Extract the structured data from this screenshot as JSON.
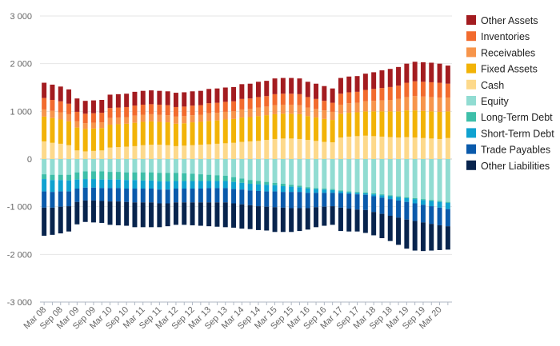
{
  "chart_data": {
    "type": "bar",
    "stacked": true,
    "grid": true,
    "legend_position": "right",
    "ylim": [
      -3000,
      3000
    ],
    "y_ticks": [
      3000,
      2000,
      1000,
      0,
      -1000,
      -2000,
      -3000
    ],
    "y_tick_labels": [
      "3 000",
      "2 000",
      "1 000",
      "0",
      "-1 000",
      "-2 000",
      "-3 000"
    ],
    "x_tick_labels": [
      "Mar 08",
      "Sep 08",
      "Mar 09",
      "Sep 09",
      "Mar 10",
      "Sep 10",
      "Mar 11",
      "Sep 11",
      "Mar 12",
      "Sep 12",
      "Mar 13",
      "Sep 13",
      "Mar 14",
      "Sep 14",
      "Mar 15",
      "Sep 15",
      "Mar 16",
      "Sep 16",
      "Mar 17",
      "Sep 17",
      "Mar 18",
      "Sep 18",
      "Mar 19",
      "Sep 19",
      "Mar 20"
    ],
    "categories": [
      "Q1 08",
      "Q2 08",
      "Q3 08",
      "Q4 08",
      "Q1 09",
      "Q2 09",
      "Q3 09",
      "Q4 09",
      "Q1 10",
      "Q2 10",
      "Q3 10",
      "Q4 10",
      "Q1 11",
      "Q2 11",
      "Q3 11",
      "Q4 11",
      "Q1 12",
      "Q2 12",
      "Q3 12",
      "Q4 12",
      "Q1 13",
      "Q2 13",
      "Q3 13",
      "Q4 13",
      "Q1 14",
      "Q2 14",
      "Q3 14",
      "Q4 14",
      "Q1 15",
      "Q2 15",
      "Q3 15",
      "Q4 15",
      "Q1 16",
      "Q2 16",
      "Q3 16",
      "Q4 16",
      "Q1 17",
      "Q2 17",
      "Q3 17",
      "Q4 17",
      "Q1 18",
      "Q2 18",
      "Q3 18",
      "Q4 18",
      "Q1 19",
      "Q2 19",
      "Q3 19",
      "Q4 19",
      "Q1 20",
      "Q2 20"
    ],
    "series": [
      {
        "name": "Cash",
        "color": "#fdd98b",
        "values": [
          370,
          340,
          320,
          290,
          180,
          160,
          170,
          180,
          240,
          250,
          260,
          270,
          290,
          300,
          300,
          290,
          270,
          280,
          290,
          300,
          310,
          320,
          330,
          340,
          360,
          370,
          380,
          400,
          420,
          430,
          430,
          420,
          400,
          380,
          360,
          350,
          450,
          470,
          480,
          490,
          480,
          470,
          460,
          450,
          460,
          450,
          440,
          430,
          420,
          440
        ]
      },
      {
        "name": "Fixed Assets",
        "color": "#f2b307",
        "values": [
          520,
          520,
          510,
          500,
          480,
          470,
          470,
          470,
          480,
          480,
          480,
          490,
          490,
          490,
          480,
          480,
          470,
          470,
          480,
          480,
          490,
          490,
          500,
          500,
          510,
          510,
          520,
          520,
          520,
          520,
          520,
          520,
          500,
          490,
          480,
          470,
          500,
          500,
          500,
          510,
          520,
          530,
          540,
          550,
          560,
          570,
          570,
          570,
          570,
          560
        ]
      },
      {
        "name": "Receivables",
        "color": "#f7954b",
        "values": [
          150,
          150,
          150,
          150,
          130,
          120,
          120,
          120,
          140,
          140,
          140,
          150,
          150,
          150,
          150,
          150,
          150,
          150,
          150,
          150,
          160,
          160,
          160,
          160,
          170,
          170,
          180,
          180,
          190,
          190,
          190,
          190,
          180,
          180,
          180,
          170,
          190,
          200,
          200,
          210,
          220,
          230,
          240,
          260,
          280,
          300,
          300,
          300,
          300,
          290
        ]
      },
      {
        "name": "Inventories",
        "color": "#f26b2e",
        "values": [
          240,
          230,
          230,
          220,
          200,
          200,
          200,
          200,
          210,
          210,
          210,
          210,
          210,
          210,
          210,
          210,
          200,
          200,
          200,
          200,
          210,
          210,
          210,
          210,
          220,
          220,
          220,
          220,
          230,
          230,
          230,
          230,
          220,
          210,
          200,
          190,
          230,
          230,
          230,
          240,
          250,
          260,
          270,
          280,
          300,
          310,
          310,
          310,
          310,
          290
        ]
      },
      {
        "name": "Other Assets",
        "color": "#a31c20",
        "values": [
          320,
          320,
          310,
          300,
          280,
          270,
          270,
          270,
          280,
          280,
          280,
          290,
          290,
          290,
          290,
          290,
          300,
          300,
          300,
          300,
          300,
          300,
          300,
          300,
          310,
          310,
          320,
          320,
          330,
          330,
          330,
          330,
          320,
          320,
          310,
          300,
          330,
          330,
          330,
          340,
          350,
          370,
          380,
          390,
          400,
          410,
          410,
          410,
          400,
          380
        ]
      },
      {
        "name": "Equity",
        "color": "#91dcd2",
        "values": [
          -320,
          -330,
          -330,
          -330,
          -280,
          -260,
          -260,
          -260,
          -270,
          -270,
          -280,
          -280,
          -280,
          -280,
          -290,
          -290,
          -290,
          -300,
          -310,
          -320,
          -330,
          -340,
          -350,
          -380,
          -410,
          -440,
          -460,
          -480,
          -500,
          -520,
          -540,
          -560,
          -590,
          -610,
          -620,
          -630,
          -660,
          -680,
          -690,
          -700,
          -720,
          -740,
          -760,
          -780,
          -800,
          -820,
          -840,
          -860,
          -880,
          -900
        ]
      },
      {
        "name": "Long-Term Debt",
        "color": "#3ebfa9",
        "values": [
          -100,
          -110,
          -110,
          -120,
          -150,
          -160,
          -160,
          -170,
          -160,
          -160,
          -160,
          -160,
          -170,
          -170,
          -180,
          -180,
          -170,
          -160,
          -150,
          -140,
          -130,
          -120,
          -110,
          -100,
          -90,
          -80,
          -70,
          -60,
          -50,
          -50,
          -40,
          -30,
          -30,
          -20,
          -20,
          -20,
          -20,
          -20,
          -20,
          -20,
          -20,
          -20,
          -20,
          -20,
          -20,
          -20,
          -20,
          -20,
          -20,
          -20
        ]
      },
      {
        "name": "Short-Term Debt",
        "color": "#10a2d0",
        "values": [
          -260,
          -250,
          -240,
          -230,
          -190,
          -180,
          -180,
          -180,
          -180,
          -180,
          -180,
          -180,
          -170,
          -170,
          -170,
          -170,
          -160,
          -160,
          -160,
          -160,
          -150,
          -150,
          -150,
          -150,
          -140,
          -140,
          -140,
          -140,
          -130,
          -120,
          -110,
          -100,
          -90,
          -80,
          -70,
          -60,
          -40,
          -30,
          -30,
          -30,
          -40,
          -50,
          -60,
          -70,
          -80,
          -90,
          -100,
          -110,
          -120,
          -130
        ]
      },
      {
        "name": "Trade Payables",
        "color": "#0a5aab",
        "values": [
          -340,
          -330,
          -320,
          -310,
          -280,
          -270,
          -270,
          -270,
          -280,
          -280,
          -280,
          -290,
          -290,
          -290,
          -290,
          -290,
          -290,
          -290,
          -290,
          -290,
          -300,
          -300,
          -300,
          -300,
          -310,
          -310,
          -320,
          -320,
          -330,
          -330,
          -340,
          -340,
          -320,
          -300,
          -290,
          -280,
          -300,
          -310,
          -320,
          -320,
          -330,
          -340,
          -350,
          -360,
          -370,
          -370,
          -370,
          -370,
          -370,
          -360
        ]
      },
      {
        "name": "Other Liabilities",
        "color": "#08244d",
        "values": [
          -590,
          -570,
          -560,
          -530,
          -470,
          -450,
          -460,
          -460,
          -490,
          -500,
          -500,
          -520,
          -520,
          -520,
          -500,
          -480,
          -470,
          -470,
          -480,
          -490,
          -500,
          -510,
          -520,
          -510,
          -510,
          -500,
          -500,
          -500,
          -520,
          -510,
          -500,
          -480,
          -450,
          -420,
          -400,
          -390,
          -490,
          -480,
          -460,
          -480,
          -490,
          -510,
          -530,
          -570,
          -610,
          -620,
          -600,
          -560,
          -520,
          -490
        ]
      }
    ],
    "legend_order": [
      "Other Assets",
      "Inventories",
      "Receivables",
      "Fixed Assets",
      "Cash",
      "Equity",
      "Long-Term Debt",
      "Short-Term Debt",
      "Trade Payables",
      "Other Liabilities"
    ]
  }
}
